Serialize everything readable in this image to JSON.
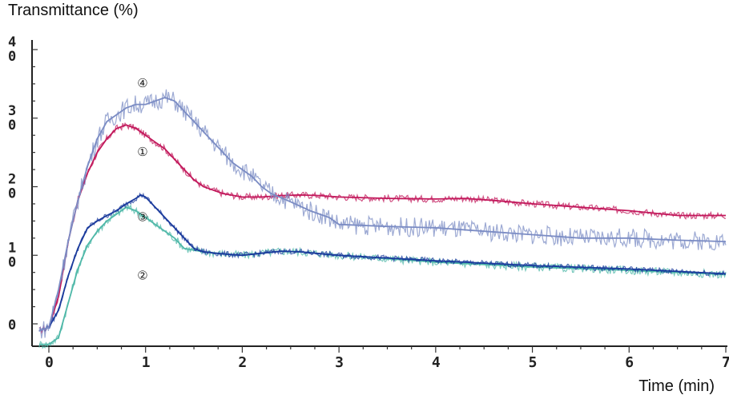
{
  "chart_data": {
    "type": "line",
    "ylabel": "Transmittance (%)",
    "xlabel": "Time (min)",
    "xlim": [
      0,
      7
    ],
    "ylim": [
      0,
      40
    ],
    "x_ticks": [
      0,
      1,
      2,
      3,
      4,
      5,
      6,
      7
    ],
    "y_ticks": [
      0,
      10,
      20,
      30,
      40
    ],
    "y_tick_labels": [
      "0",
      "1\n0",
      "2\n0",
      "3\n0",
      "4\n0"
    ],
    "series": [
      {
        "name": "①",
        "color": "#c2185b",
        "x": [
          -0.1,
          0.0,
          0.1,
          0.2,
          0.3,
          0.4,
          0.5,
          0.6,
          0.7,
          0.8,
          0.9,
          1.0,
          1.1,
          1.2,
          1.3,
          1.4,
          1.5,
          1.6,
          1.7,
          1.8,
          2.0,
          2.2,
          2.4,
          2.6,
          2.8,
          3.0,
          3.5,
          4.0,
          4.3,
          4.6,
          5.0,
          5.5,
          6.0,
          6.5,
          7.0
        ],
        "y": [
          -1,
          -0.5,
          4,
          12,
          18,
          22,
          25,
          27,
          28.5,
          29,
          28.5,
          27.5,
          26.5,
          25.5,
          24,
          22.5,
          21,
          20,
          19.5,
          19,
          18.5,
          18.5,
          18.7,
          18.8,
          18.7,
          18.5,
          18.3,
          18.2,
          18.3,
          18,
          17.5,
          17,
          16.5,
          15.8,
          15.8
        ]
      },
      {
        "name": "②",
        "color": "#4fb8a8",
        "x": [
          -0.1,
          0.0,
          0.1,
          0.2,
          0.3,
          0.4,
          0.5,
          0.6,
          0.7,
          0.8,
          0.9,
          1.0,
          1.1,
          1.2,
          1.3,
          1.4,
          1.6,
          1.8,
          2.0,
          2.2,
          2.4,
          2.6,
          3.0,
          4.0,
          5.0,
          6.0,
          7.0
        ],
        "y": [
          -3,
          -3,
          -2,
          3,
          8,
          11.5,
          13.5,
          15,
          16,
          17,
          16.5,
          15.5,
          14.5,
          13.5,
          12.5,
          11,
          10.5,
          10.2,
          10,
          10.3,
          10.6,
          10.5,
          10,
          9,
          8.3,
          7.8,
          7.2
        ]
      },
      {
        "name": "③",
        "color": "#1a3a9c",
        "x": [
          -0.1,
          0.0,
          0.1,
          0.2,
          0.3,
          0.4,
          0.5,
          0.6,
          0.7,
          0.8,
          0.9,
          0.95,
          1.0,
          1.1,
          1.2,
          1.3,
          1.4,
          1.5,
          1.6,
          1.8,
          2.0,
          2.2,
          2.4,
          2.6,
          3.0,
          4.0,
          5.0,
          6.0,
          7.0
        ],
        "y": [
          -1,
          -0.5,
          2,
          7,
          11,
          14,
          15,
          15.8,
          16.5,
          17.5,
          18.3,
          18.8,
          18.5,
          17,
          15.5,
          14,
          12.5,
          11,
          10.5,
          10.2,
          10,
          10.3,
          10.6,
          10.5,
          10,
          9.2,
          8.5,
          8,
          7.3
        ]
      },
      {
        "name": "④",
        "color": "#7b8cc4",
        "x": [
          -0.1,
          0.0,
          0.1,
          0.2,
          0.3,
          0.4,
          0.5,
          0.6,
          0.7,
          0.8,
          0.9,
          1.0,
          1.1,
          1.2,
          1.3,
          1.4,
          1.5,
          1.6,
          1.7,
          1.8,
          1.9,
          2.0,
          2.1,
          2.2,
          2.3,
          2.5,
          2.7,
          2.9,
          3.0,
          3.5,
          4.0,
          4.5,
          5.0,
          5.5,
          6.0,
          6.5,
          7.0
        ],
        "y": [
          -1,
          -0.5,
          5,
          12,
          18,
          23,
          27,
          29.5,
          30.5,
          31.5,
          32,
          32,
          32.5,
          33,
          32.5,
          31,
          29.5,
          28,
          26.5,
          25,
          23.5,
          22.5,
          21.5,
          20,
          19,
          17.8,
          16.5,
          15.5,
          14.5,
          14.2,
          14,
          13.5,
          13,
          12.5,
          12.5,
          12.2,
          12
        ]
      }
    ]
  }
}
